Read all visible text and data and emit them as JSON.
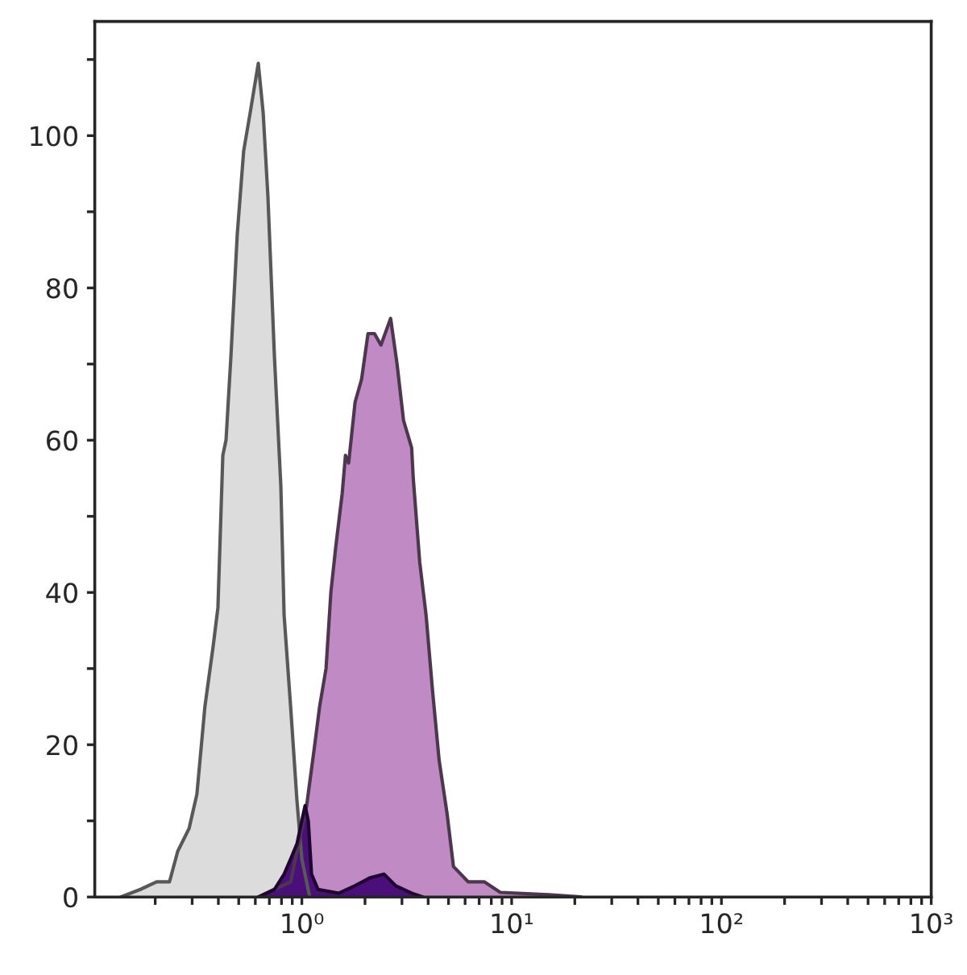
{
  "chart_data": {
    "type": "area",
    "log": "x",
    "grid": false,
    "legend": false,
    "xlim": [
      0.103,
      1000
    ],
    "ylim": [
      0,
      115
    ],
    "xticks": [
      {
        "value": 0.2,
        "label": null
      },
      {
        "value": 0.3,
        "label": null
      },
      {
        "value": 0.4,
        "label": null
      },
      {
        "value": 0.5,
        "label": null
      },
      {
        "value": 0.6,
        "label": null
      },
      {
        "value": 0.7,
        "label": null
      },
      {
        "value": 0.8,
        "label": null
      },
      {
        "value": 0.9,
        "label": null
      },
      {
        "value": 1,
        "label": "10⁰"
      },
      {
        "value": 2,
        "label": null
      },
      {
        "value": 3,
        "label": null
      },
      {
        "value": 4,
        "label": null
      },
      {
        "value": 5,
        "label": null
      },
      {
        "value": 6,
        "label": null
      },
      {
        "value": 7,
        "label": null
      },
      {
        "value": 8,
        "label": null
      },
      {
        "value": 9,
        "label": null
      },
      {
        "value": 10,
        "label": "10¹"
      },
      {
        "value": 20,
        "label": null
      },
      {
        "value": 30,
        "label": null
      },
      {
        "value": 40,
        "label": null
      },
      {
        "value": 50,
        "label": null
      },
      {
        "value": 60,
        "label": null
      },
      {
        "value": 70,
        "label": null
      },
      {
        "value": 80,
        "label": null
      },
      {
        "value": 90,
        "label": null
      },
      {
        "value": 100,
        "label": "10²"
      },
      {
        "value": 200,
        "label": null
      },
      {
        "value": 300,
        "label": null
      },
      {
        "value": 400,
        "label": null
      },
      {
        "value": 500,
        "label": null
      },
      {
        "value": 600,
        "label": null
      },
      {
        "value": 700,
        "label": null
      },
      {
        "value": 800,
        "label": null
      },
      {
        "value": 900,
        "label": null
      },
      {
        "value": 1000,
        "label": "10³"
      }
    ],
    "yticks": [
      0,
      {
        "value": 10,
        "label": null
      },
      20,
      {
        "value": 30,
        "label": null
      },
      40,
      {
        "value": 50,
        "label": null
      },
      60,
      {
        "value": 70,
        "label": null
      },
      80,
      {
        "value": 90,
        "label": null
      },
      100,
      {
        "value": 110,
        "label": null
      }
    ],
    "series": [
      {
        "color": "#dcdcdc",
        "x": [
          0.137,
          0.17,
          0.203,
          0.234,
          0.256,
          0.29,
          0.316,
          0.345,
          0.378,
          0.398,
          0.42,
          0.435,
          0.459,
          0.492,
          0.528,
          0.567,
          0.62,
          0.654,
          0.689,
          0.74,
          0.794,
          0.823,
          0.884,
          0.948,
          1.0,
          1.09
        ],
        "values": [
          0,
          1,
          2,
          2,
          6,
          9,
          13.5,
          25,
          33,
          38,
          58,
          60,
          71,
          87,
          98,
          103,
          109.5,
          103,
          92,
          71,
          54,
          37,
          25,
          12.6,
          5,
          0
        ]
      },
      {
        "color": "#c08ac4",
        "x": [
          0.74,
          0.884,
          1.054,
          1.152,
          1.215,
          1.304,
          1.375,
          1.451,
          1.557,
          1.614,
          1.671,
          1.794,
          1.926,
          2.067,
          2.219,
          2.382,
          2.649,
          2.843,
          3.052,
          3.337,
          3.396,
          3.645,
          3.91,
          4.2,
          4.51,
          4.92,
          5.28,
          6.2,
          7.4,
          8.83,
          15,
          21.4
        ],
        "values": [
          1,
          2,
          12,
          20,
          25,
          30,
          40,
          46,
          53,
          58,
          57,
          65,
          68,
          74,
          74,
          72.5,
          76,
          70,
          62.6,
          59,
          55,
          44,
          37,
          27,
          18,
          11,
          4,
          2,
          2,
          0.6,
          0.3,
          0
        ]
      },
      {
        "color": "#4b0f7a",
        "x": [
          0.62,
          0.74,
          0.823,
          0.884,
          0.948,
          0.982,
          1.036,
          1.073,
          1.112,
          1.194,
          1.503,
          1.794,
          2.104,
          2.467,
          2.794,
          3.337,
          3.774
        ],
        "values": [
          0,
          1,
          3,
          5,
          7,
          9,
          12,
          10,
          3,
          1,
          0.5,
          1.5,
          2.5,
          3,
          1.5,
          0.5,
          0
        ]
      }
    ]
  }
}
